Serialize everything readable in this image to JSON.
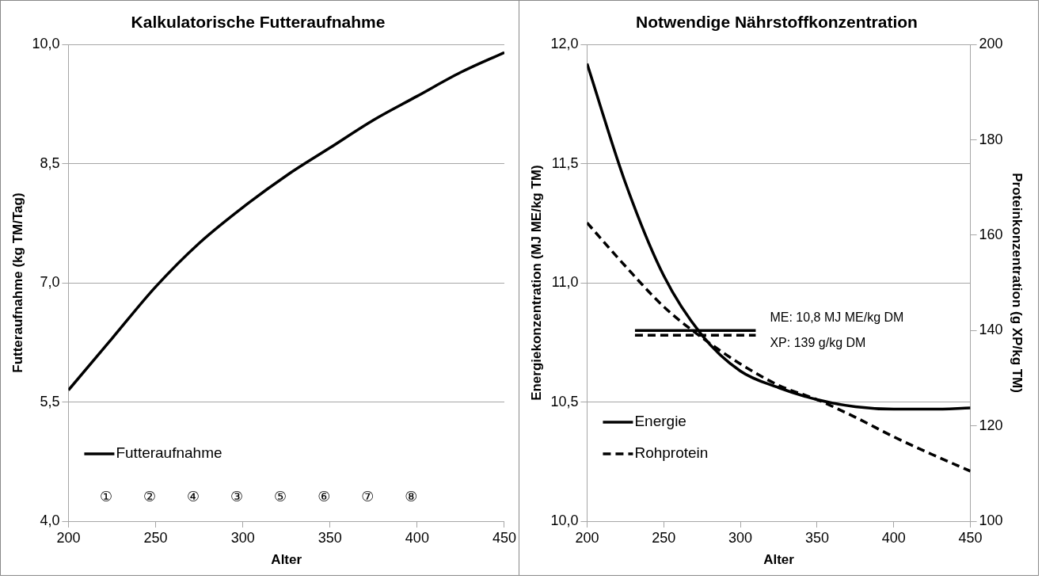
{
  "chart_data": [
    {
      "type": "line",
      "title": "Kalkulatorische Futteraufnahme",
      "xlabel": "Alter",
      "ylabel": "Futteraufnahme (kg TM/Tag)",
      "x": [
        200,
        225,
        250,
        275,
        300,
        325,
        350,
        375,
        400,
        425,
        450
      ],
      "series": [
        {
          "name": "Futteraufnahme",
          "color": "#000000",
          "line_style": "solid",
          "values": [
            5.65,
            6.3,
            6.95,
            7.5,
            7.95,
            8.35,
            8.7,
            9.05,
            9.35,
            9.65,
            9.9
          ]
        }
      ],
      "xlim": [
        200,
        450
      ],
      "xticks": [
        200,
        250,
        300,
        350,
        400,
        450
      ],
      "ylim": [
        4,
        10
      ],
      "yticks": [
        {
          "value": 4,
          "label": "4,0"
        },
        {
          "value": 5.5,
          "label": "5,5"
        },
        {
          "value": 7,
          "label": "7,0"
        },
        {
          "value": 8.5,
          "label": "8,5"
        },
        {
          "value": 10,
          "label": "10,0"
        }
      ],
      "grid": "y",
      "legend": "bottom left",
      "annotations": [
        "①",
        "②",
        "④",
        "③",
        "⑤",
        "⑥",
        "⑦",
        "⑧"
      ]
    },
    {
      "type": "line",
      "title": "Notwendige Nährstoffkonzentration",
      "xlabel": "Alter",
      "ylabel": "Energiekonzentration (MJ ME/kg TM)",
      "y2label": "Proteinkonzentration (g XP/kg TM)",
      "x": [
        200,
        225,
        250,
        275,
        300,
        325,
        350,
        375,
        400,
        425,
        450
      ],
      "series": [
        {
          "name": "Energie",
          "color": "#000000",
          "line_style": "solid",
          "values": [
            11.92,
            11.42,
            11.03,
            10.78,
            10.63,
            10.56,
            10.51,
            10.48,
            10.47,
            10.47,
            10.475
          ]
        },
        {
          "name": "Rohprotein",
          "color": "#000000",
          "line_style": "dashed",
          "axis": "y2",
          "values": [
            162.6,
            153.5,
            145,
            138.5,
            133,
            128.5,
            125.5,
            121.8,
            117.7,
            114,
            110.5
          ]
        }
      ],
      "ref_lines": [
        {
          "axis": "y",
          "value": 10.8,
          "label": "ME: 10,8 MJ ME/kg DM",
          "color": "#000000",
          "line_style": "solid"
        },
        {
          "axis": "y2",
          "value": 139,
          "label": "XP: 139 g/kg DM",
          "color": "#000000",
          "line_style": "dashed"
        }
      ],
      "xlim": [
        200,
        450
      ],
      "xticks": [
        200,
        250,
        300,
        350,
        400,
        450
      ],
      "ylim": [
        10,
        12
      ],
      "yticks": [
        {
          "value": 10,
          "label": "10,0"
        },
        {
          "value": 10.5,
          "label": "10,5"
        },
        {
          "value": 11,
          "label": "11,0"
        },
        {
          "value": 11.5,
          "label": "11,5"
        },
        {
          "value": 12,
          "label": "12,0"
        }
      ],
      "y2lim": [
        100,
        200
      ],
      "y2ticks": [
        100,
        120,
        140,
        160,
        180,
        200
      ],
      "grid": "y",
      "legend": "bottom left"
    }
  ]
}
